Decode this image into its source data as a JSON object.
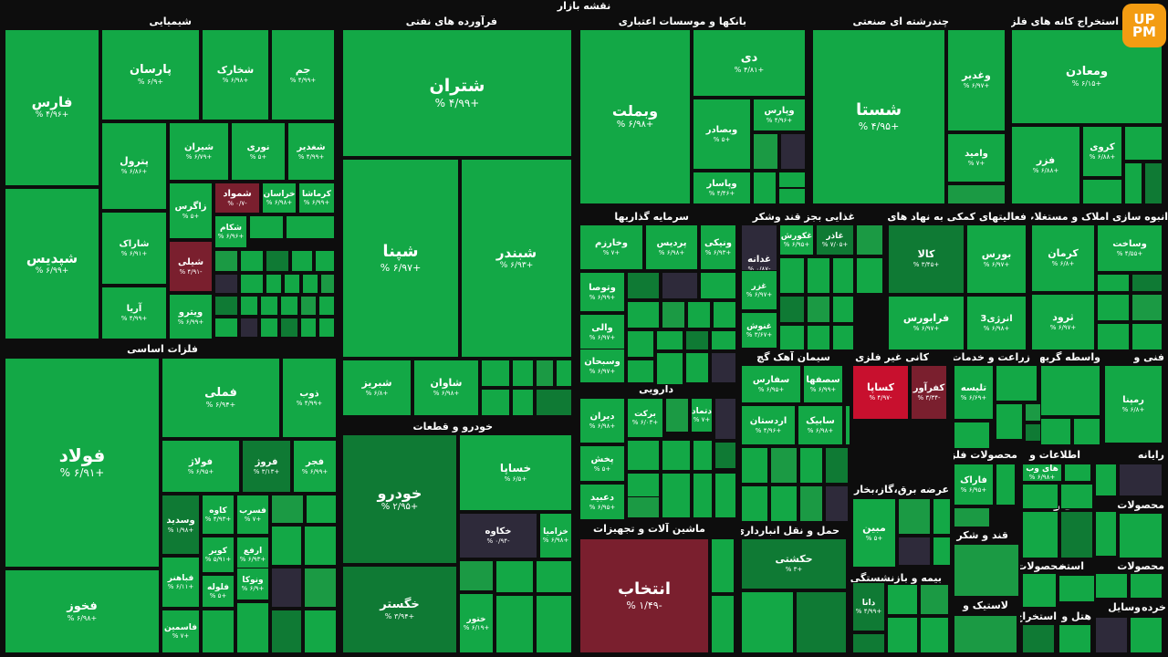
{
  "title": "نقشه بازار",
  "logo_text": [
    "UP",
    "PM"
  ],
  "colors": {
    "up": "#13a846",
    "up2": "#1b9a44",
    "dark_up": "#0f7a34",
    "neutral": "#2e2a3a",
    "down": "#7a1f2e",
    "down_strong": "#c8102e"
  },
  "chart_data": {
    "type": "treemap",
    "sectors": [
      "شیمیایی",
      "فرآورده های نفتی",
      "بانکها و موسسات اعتباری",
      "چندرشته ای صنعتی",
      "استخراج کانه های فلزی",
      "فلزات اساسی",
      "خودرو و قطعات",
      "سرمایه گذاریها",
      "غذایی بجز قند وشکر",
      "فعالیتهای کمکی به نهاد های مالی",
      "انبوه سازی املاک و مستغلات",
      "سیمان آهک گچ",
      "کانی غیر فلزی",
      "زراعت و خدمات",
      "واسطه گریهای",
      "فنی و",
      "دارویی",
      "ماشین آلات و تجهیزات",
      "حمل و نقل انبارداری و",
      "عرضه برق،گاز،بخار و آب",
      "بیمه و بازنشستگی",
      "محصولات فلزی",
      "اطلاعات و",
      "رایانه",
      "کاشی و",
      "محصولات",
      "قند و شکر",
      "لاستیک و",
      "استخراج",
      "محصولات",
      "هتل و",
      "وسایل",
      "خرده",
      "استخراج",
      "محصولات",
      "مخابرات",
      "بیمانکاری",
      "استخراج",
      "منسو",
      "مح"
    ],
    "tiles": [
      {
        "name": "فارس",
        "pct": "+۴/۹۶ %"
      },
      {
        "name": "پارسان",
        "pct": "+۶/۹ %"
      },
      {
        "name": "شخارک",
        "pct": "+۶/۹۸ %"
      },
      {
        "name": "جم",
        "pct": "+۴/۹۹ %"
      },
      {
        "name": "شپدیس",
        "pct": "+۶/۹۹ %"
      },
      {
        "name": "پترول",
        "pct": "+۶/۸۶ %"
      },
      {
        "name": "شیران",
        "pct": "+۶/۷۹ %"
      },
      {
        "name": "نوری",
        "pct": "+۵ %"
      },
      {
        "name": "شغدیر",
        "pct": "+۴/۹۹ %"
      },
      {
        "name": "زاگرس",
        "pct": "+۵ %"
      },
      {
        "name": "شموا‌د",
        "pct": "-۰/۷ %"
      },
      {
        "name": "خراسان",
        "pct": "+۶/۹۸ %"
      },
      {
        "name": "کرماشا",
        "pct": "+۶/۹۹ %"
      },
      {
        "name": "شکام",
        "pct": "+۶/۹۶ %"
      },
      {
        "name": "شیلی",
        "pct": "-۴/۹۱ %"
      },
      {
        "name": "شاراک",
        "pct": "+۶/۹۱ %"
      },
      {
        "name": "آریا",
        "pct": "+۴/۹۹ %"
      },
      {
        "name": "ویترو",
        "pct": "+۶/۹۹ %"
      },
      {
        "name": "شتران",
        "pct": "+۴/۹۹ %"
      },
      {
        "name": "شپنا",
        "pct": "+۶/۹۷ %"
      },
      {
        "name": "شبندر",
        "pct": "+۶/۹۳ %"
      },
      {
        "name": "شبریز",
        "pct": "+۶/۸ %"
      },
      {
        "name": "شاوان",
        "pct": "+۶/۹۸ %"
      },
      {
        "name": "وبملت",
        "pct": "+۶/۹۸ %"
      },
      {
        "name": "دی",
        "pct": "+۴/۸۱ %"
      },
      {
        "name": "وپارس",
        "pct": "+۴/۹۶ %"
      },
      {
        "name": "وبصادر",
        "pct": "+۵ %"
      },
      {
        "name": "وپاسار",
        "pct": "+۴/۴۶ %"
      },
      {
        "name": "شستا",
        "pct": "+۴/۹۵ %"
      },
      {
        "name": "وغدیر",
        "pct": "+۶/۹۷ %"
      },
      {
        "name": "وامید",
        "pct": "+۷ %"
      },
      {
        "name": "ومعادن",
        "pct": "+۶/۱۵ %"
      },
      {
        "name": "کروی",
        "pct": "+۶/۸۸ %"
      },
      {
        "name": "فزر",
        "pct": "+۶/۸۸ %"
      },
      {
        "name": "فولاد",
        "pct": "+۶/۹۱ %"
      },
      {
        "name": "فملی",
        "pct": "+۶/۹۴ %"
      },
      {
        "name": "ذوب",
        "pct": "+۴/۹۹ %"
      },
      {
        "name": "فولاژ",
        "pct": "+۶/۹۵ %"
      },
      {
        "name": "فروژ",
        "pct": "+۳/۱۳ %"
      },
      {
        "name": "فجر",
        "pct": "+۶/۹۹ %"
      },
      {
        "name": "وسدید",
        "pct": "+۱/۹۸ %"
      },
      {
        "name": "کاوه",
        "pct": "+۴/۹۳ %"
      },
      {
        "name": "فسرب",
        "pct": "+۷ %"
      },
      {
        "name": "کویر",
        "pct": "+۵/۹۱ %"
      },
      {
        "name": "ارفع",
        "pct": "+۶/۹۳ %"
      },
      {
        "name": "فباهنر",
        "pct": "+۶/۱۱ %"
      },
      {
        "name": "فلوله",
        "pct": "+۵ %"
      },
      {
        "name": "ونوکا",
        "pct": "+۶/۹ %"
      },
      {
        "name": "فخوز",
        "pct": "+۶/۹۸ %"
      },
      {
        "name": "فاسمین",
        "pct": "+۷ %"
      },
      {
        "name": "خودرو",
        "pct": "+۲/۹۵ %"
      },
      {
        "name": "خساپا",
        "pct": "+۶/۵ %"
      },
      {
        "name": "خکاوه",
        "pct": "-۰/۹۴ %"
      },
      {
        "name": "خزامیا",
        "pct": "+۶/۹۸ %"
      },
      {
        "name": "خگستر",
        "pct": "+۳/۹۴ %"
      },
      {
        "name": "ختور",
        "pct": "+۶/۱۹ %"
      },
      {
        "name": "وخارزم",
        "pct": "+۷ %"
      },
      {
        "name": "پردیس",
        "pct": "+۶/۹۸ %"
      },
      {
        "name": "ونیکی",
        "pct": "+۶/۹۳ %"
      },
      {
        "name": "وتوصا",
        "pct": "+۶/۹۹ %"
      },
      {
        "name": "والی",
        "pct": "+۶/۹۷ %"
      },
      {
        "name": "وسبحان",
        "pct": "+۶/۹۷ %"
      },
      {
        "name": "غدانه",
        "pct": "-۰/۸۷ %"
      },
      {
        "name": "غکورش",
        "pct": "+۶/۹۵ %"
      },
      {
        "name": "غاذر",
        "pct": "+۷/۰۵ %"
      },
      {
        "name": "غزر",
        "pct": "+۶/۹۷ %"
      },
      {
        "name": "غنوش",
        "pct": "+۳/۶۷ %"
      },
      {
        "name": "کالا",
        "pct": "+۳/۴۵ %"
      },
      {
        "name": "بورس",
        "pct": "+۶/۹۷ %"
      },
      {
        "name": "فرابورس",
        "pct": "+۶/۹۷ %"
      },
      {
        "name": "انرژی3",
        "pct": "+۶/۹۸ %"
      },
      {
        "name": "کرمان",
        "pct": "+۶/۸ %"
      },
      {
        "name": "وساخت",
        "pct": "+۴/۵۵ %"
      },
      {
        "name": "ثرود",
        "pct": "+۶/۹۷ %"
      },
      {
        "name": "سفارس",
        "pct": "+۶/۹۵ %"
      },
      {
        "name": "سصفها",
        "pct": "+۶/۹۹ %"
      },
      {
        "name": "اردستان",
        "pct": "+۴/۹۶ %"
      },
      {
        "name": "سابیک",
        "pct": "+۶/۹۸ %"
      },
      {
        "name": "کساپا",
        "pct": "-۴/۹۷ %"
      },
      {
        "name": "کفرآور",
        "pct": "-۳/۳۴ %"
      },
      {
        "name": "تلیسه",
        "pct": "+۶/۶۹ %"
      },
      {
        "name": "رمپنا",
        "pct": "+۶/۸ %"
      },
      {
        "name": "دیران",
        "pct": "+۶/۹۸ %"
      },
      {
        "name": "برکت",
        "pct": "+۶/۰۳ %"
      },
      {
        "name": "دتماد",
        "pct": "+۷ %"
      },
      {
        "name": "پخش",
        "pct": "+۵ %"
      },
      {
        "name": "دعبید",
        "pct": "+۶/۹۵ %"
      },
      {
        "name": "انتخاب",
        "pct": "-۱/۴۹ %"
      },
      {
        "name": "حکشتی",
        "pct": "+۳ %"
      },
      {
        "name": "مبین",
        "pct": "+۵ %"
      },
      {
        "name": "دانا",
        "pct": "+۴/۹۹ %"
      },
      {
        "name": "فاراک",
        "pct": "+۶/۹۵ %"
      },
      {
        "name": "های وب",
        "pct": "+۶/۹۸ %"
      }
    ]
  }
}
